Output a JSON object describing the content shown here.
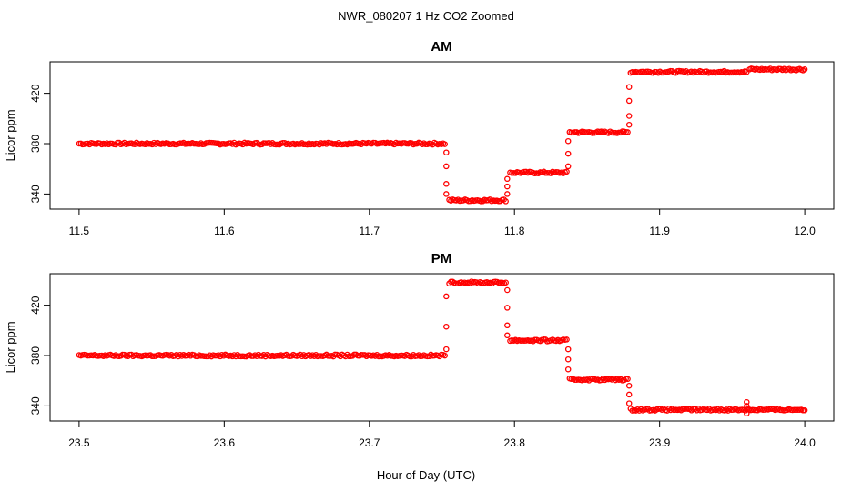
{
  "figure": {
    "title": "NWR_080207  1 Hz CO2 Zoomed",
    "xlabel": "Hour of Day (UTC)"
  },
  "chart_data": [
    {
      "type": "scatter",
      "title": "AM",
      "ylabel": "Licor ppm",
      "xlabel": "",
      "xlim": [
        11.48,
        12.02
      ],
      "ylim": [
        328,
        445
      ],
      "xticks": [
        "11.5",
        "11.6",
        "11.7",
        "11.8",
        "11.9",
        "12.0"
      ],
      "yticks": [
        "340",
        "380",
        "420"
      ],
      "marker_color": "#ff0000",
      "levels": [
        {
          "x_start": 11.5,
          "x_end": 11.752,
          "y": 380
        },
        {
          "x_start": 11.755,
          "x_end": 11.794,
          "y": 335
        },
        {
          "x_start": 11.797,
          "x_end": 11.836,
          "y": 357
        },
        {
          "x_start": 11.838,
          "x_end": 11.878,
          "y": 389
        },
        {
          "x_start": 11.88,
          "x_end": 11.96,
          "y": 437
        },
        {
          "x_start": 11.962,
          "x_end": 12.0,
          "y": 439
        }
      ],
      "transitions": [
        {
          "x": 11.753,
          "y": [
            373,
            362,
            348,
            340
          ]
        },
        {
          "x": 11.795,
          "y": [
            340,
            346,
            352
          ]
        },
        {
          "x": 11.837,
          "y": [
            362,
            372,
            382
          ]
        },
        {
          "x": 11.879,
          "y": [
            395,
            402,
            414,
            425
          ]
        }
      ]
    },
    {
      "type": "scatter",
      "title": "PM",
      "ylabel": "Licor ppm",
      "xlabel": "",
      "xlim": [
        23.48,
        24.02
      ],
      "ylim": [
        328,
        445
      ],
      "xticks": [
        "23.5",
        "23.6",
        "23.7",
        "23.8",
        "23.9",
        "24.0"
      ],
      "yticks": [
        "340",
        "380",
        "420"
      ],
      "marker_color": "#ff0000",
      "levels": [
        {
          "x_start": 23.5,
          "x_end": 23.752,
          "y": 380
        },
        {
          "x_start": 23.755,
          "x_end": 23.794,
          "y": 438
        },
        {
          "x_start": 23.797,
          "x_end": 23.836,
          "y": 392
        },
        {
          "x_start": 23.838,
          "x_end": 23.878,
          "y": 361
        },
        {
          "x_start": 23.88,
          "x_end": 24.0,
          "y": 337
        }
      ],
      "transitions": [
        {
          "x": 23.753,
          "y": [
            385,
            403,
            427
          ]
        },
        {
          "x": 23.795,
          "y": [
            432,
            418,
            404,
            396
          ]
        },
        {
          "x": 23.837,
          "y": [
            385,
            377,
            369
          ]
        },
        {
          "x": 23.879,
          "y": [
            356,
            349,
            342
          ]
        },
        {
          "x": 23.96,
          "y": [
            343,
            340,
            334
          ]
        }
      ]
    }
  ]
}
